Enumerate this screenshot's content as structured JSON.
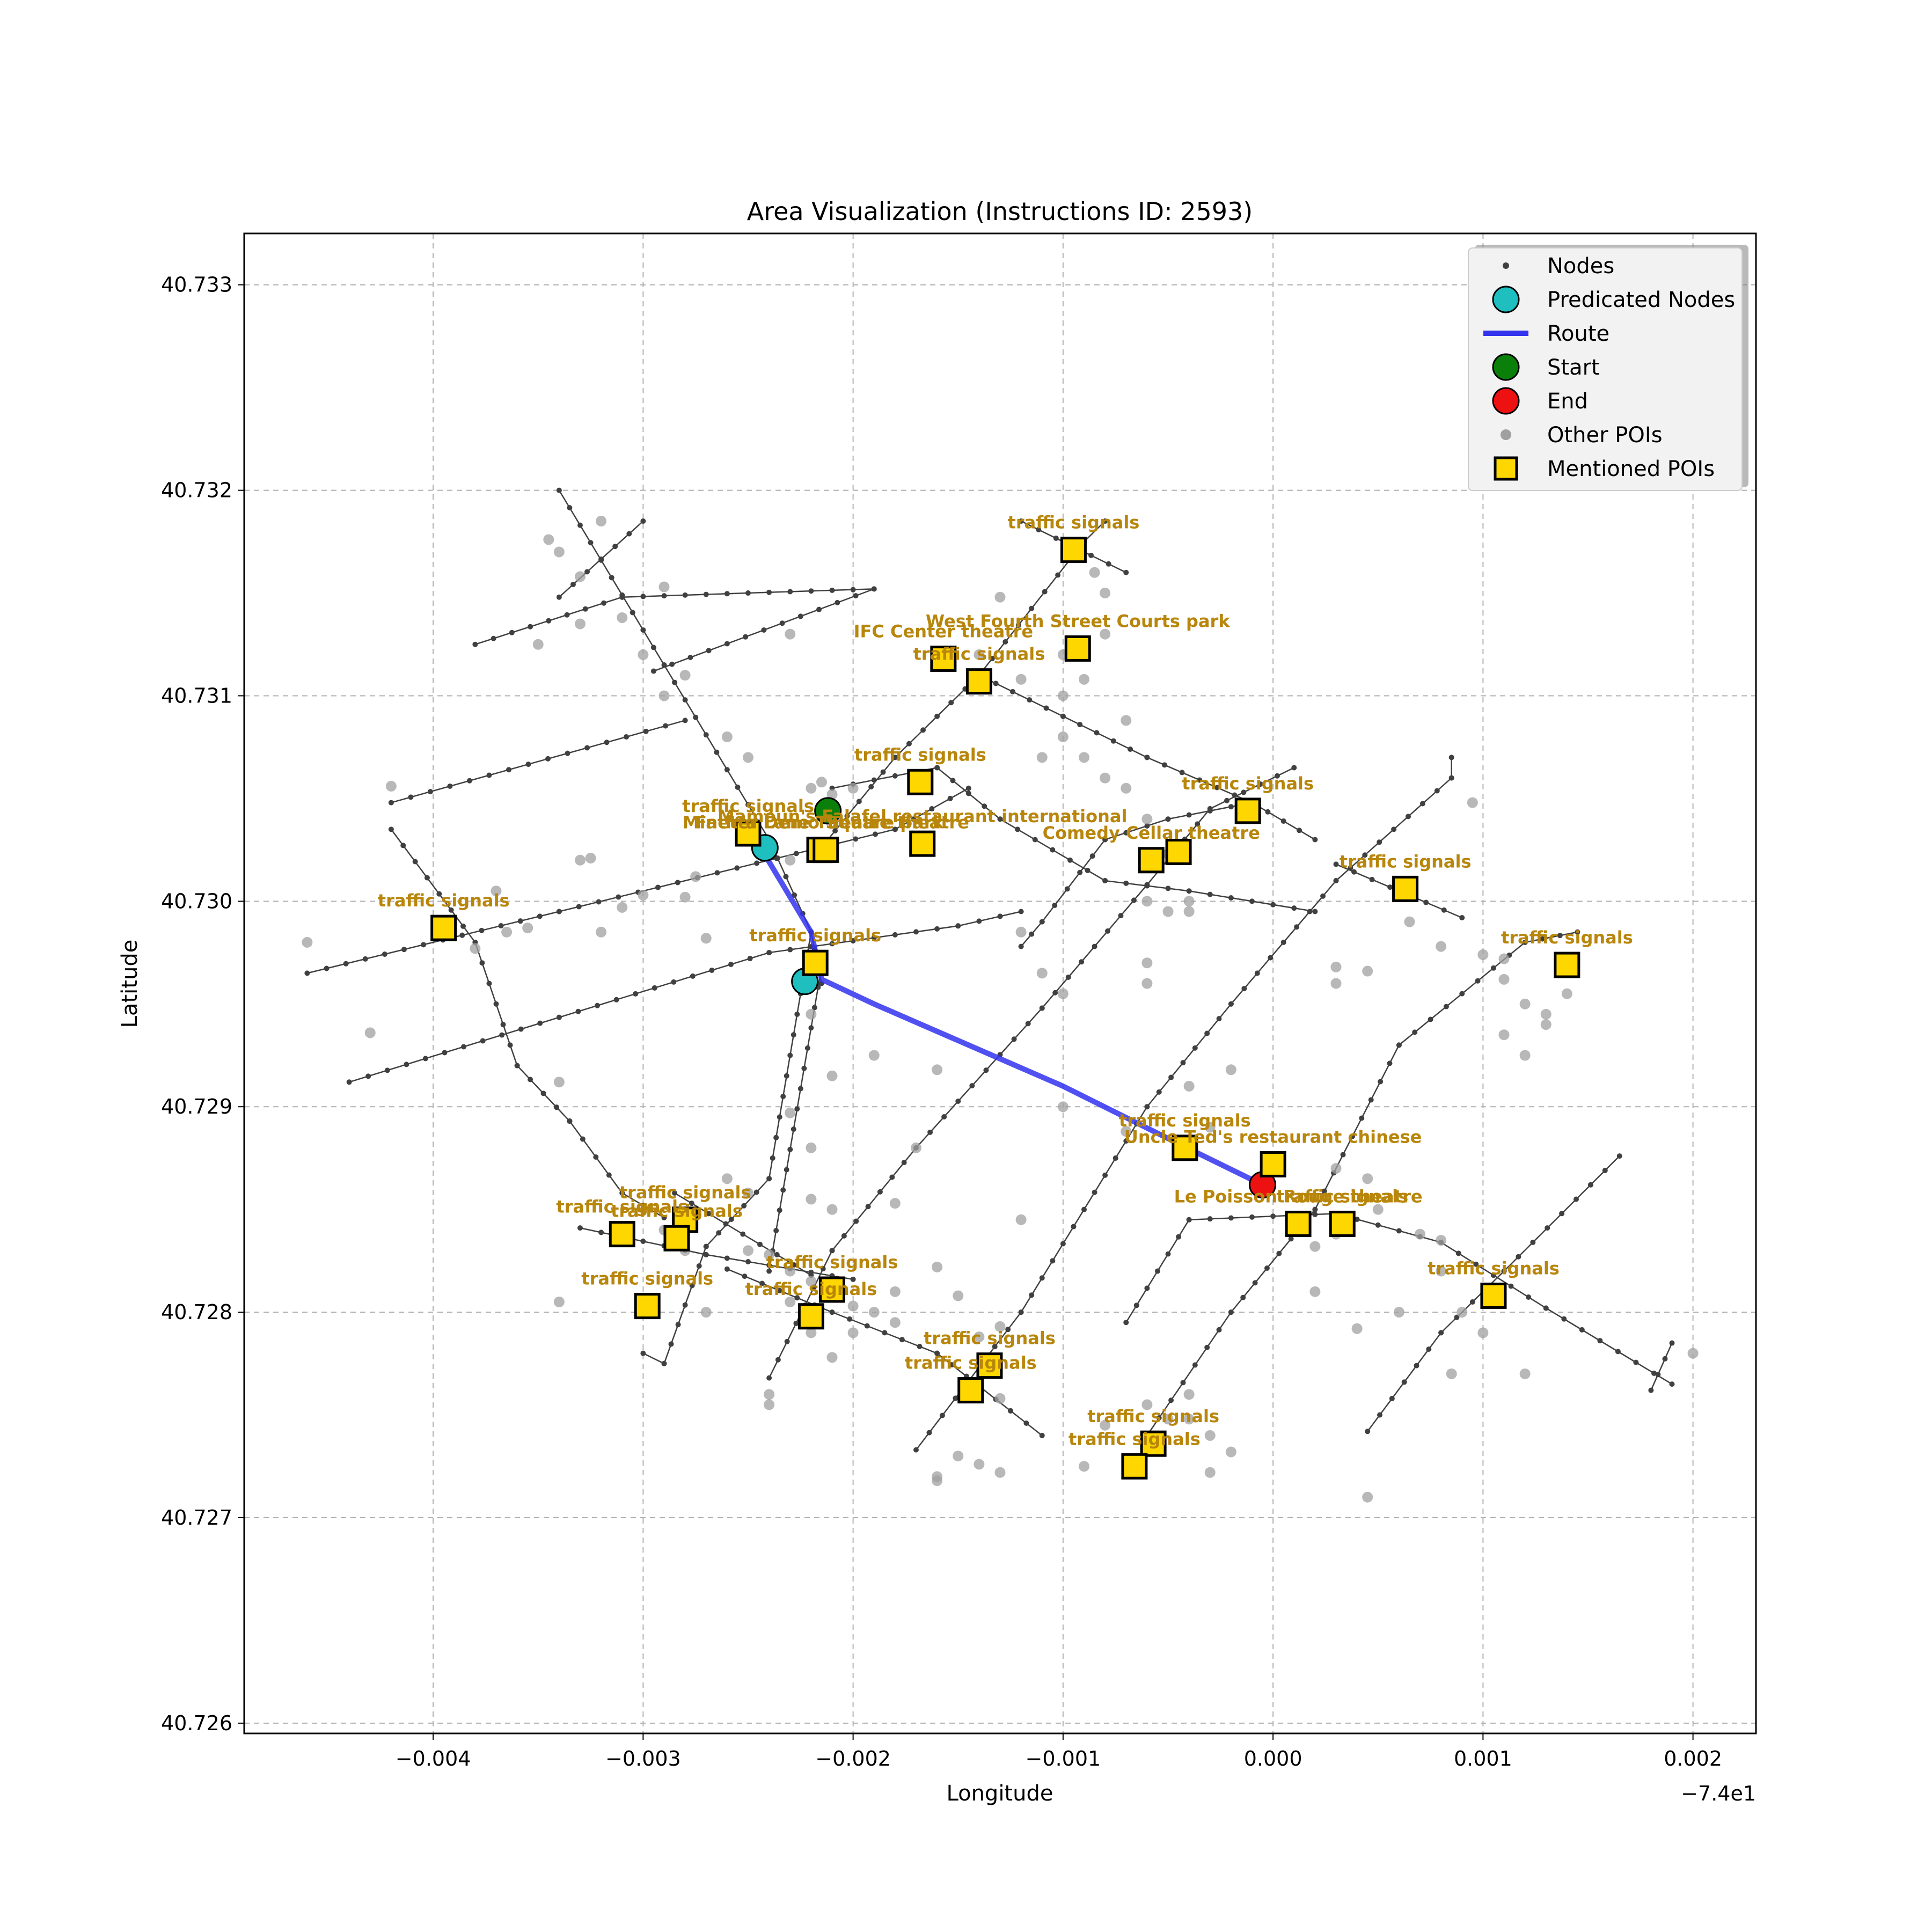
{
  "chart_data": {
    "type": "scatter",
    "title": "Area Visualization (Instructions ID: 2593)",
    "xlabel": "Longitude",
    "ylabel": "Latitude",
    "x_offset_label": "−7.4e1",
    "xlim": [
      -0.0049,
      0.0023
    ],
    "ylim": [
      40.72595,
      40.73325
    ],
    "xticks": [
      -0.004,
      -0.003,
      -0.002,
      -0.001,
      0.0,
      0.001,
      0.002
    ],
    "xtick_labels": [
      "−0.004",
      "−0.003",
      "−0.002",
      "−0.001",
      "0.000",
      "0.001",
      "0.002"
    ],
    "yticks": [
      40.726,
      40.727,
      40.728,
      40.729,
      40.73,
      40.731,
      40.732,
      40.733
    ],
    "ytick_labels": [
      "40.726",
      "40.727",
      "40.728",
      "40.729",
      "40.730",
      "40.731",
      "40.732",
      "40.733"
    ],
    "grid": true,
    "legend_position": "top-right",
    "legend": [
      {
        "label": "Nodes",
        "marker": "dot",
        "color": "#404040"
      },
      {
        "label": "Predicated Nodes",
        "marker": "circle",
        "color": "#1fbfbf"
      },
      {
        "label": "Route",
        "marker": "line",
        "color": "#3333ee"
      },
      {
        "label": "Start",
        "marker": "circle",
        "color": "#0a800a"
      },
      {
        "label": "End",
        "marker": "circle",
        "color": "#ee1111"
      },
      {
        "label": "Other POIs",
        "marker": "dot",
        "color": "#a0a0a0"
      },
      {
        "label": "Mentioned POIs",
        "marker": "square",
        "color": "#ffd700"
      }
    ],
    "streets": [
      [
        [
          -0.0046,
          40.72965
        ],
        [
          -0.0034,
          40.72995
        ],
        [
          -0.0018,
          40.73035
        ],
        [
          -0.00145,
          40.73055
        ]
      ],
      [
        [
          -0.0044,
          40.72912
        ],
        [
          -0.0024,
          40.72975
        ],
        [
          -0.0015,
          40.72988
        ],
        [
          -0.0012,
          40.72995
        ]
      ],
      [
        [
          -0.0042,
          40.73048
        ],
        [
          -0.0028,
          40.73088
        ]
      ],
      [
        [
          -0.0038,
          40.73125
        ],
        [
          -0.0031,
          40.73148
        ],
        [
          -0.0019,
          40.73152
        ]
      ],
      [
        [
          -0.0034,
          40.73148
        ],
        [
          -0.003,
          40.73185
        ]
      ],
      [
        [
          -0.00295,
          40.73112
        ],
        [
          -0.0019,
          40.73152
        ]
      ],
      [
        [
          -0.0034,
          40.732
        ],
        [
          -0.0024,
          40.7303
        ],
        [
          -0.0022,
          40.72985
        ],
        [
          -0.00215,
          40.7296
        ]
      ],
      [
        [
          -0.0042,
          40.73035
        ],
        [
          -0.0038,
          40.7298
        ],
        [
          -0.0036,
          40.7292
        ],
        [
          -0.00335,
          40.72893
        ],
        [
          -0.0031,
          40.72858
        ],
        [
          -0.0029,
          40.72846
        ]
      ],
      [
        [
          -0.0033,
          40.72841
        ],
        [
          -0.0027,
          40.72828
        ],
        [
          -0.002,
          40.72816
        ]
      ],
      [
        [
          -0.0026,
          40.72821
        ],
        [
          -0.0021,
          40.728
        ],
        [
          -0.0016,
          40.7278
        ],
        [
          -0.00125,
          40.72752
        ],
        [
          -0.0011,
          40.7274
        ]
      ],
      [
        [
          -0.00285,
          40.72858
        ],
        [
          -0.0022,
          40.72818
        ]
      ],
      [
        [
          -0.0022,
          40.72985
        ],
        [
          -0.0024,
          40.72865
        ],
        [
          -0.0027,
          40.72832
        ],
        [
          -0.0029,
          40.72775
        ],
        [
          -0.003,
          40.7278
        ]
      ],
      [
        [
          -0.00215,
          40.72968
        ],
        [
          -0.0024,
          40.7282
        ]
      ],
      [
        [
          -0.0024,
          40.72768
        ],
        [
          -0.0021,
          40.7283
        ],
        [
          -0.0017,
          40.7288
        ],
        [
          -0.0011,
          40.72948
        ],
        [
          -0.0006,
          40.73008
        ],
        [
          -0.0003,
          40.73045
        ],
        [
          0.0001,
          40.73065
        ]
      ],
      [
        [
          -0.0017,
          40.72733
        ],
        [
          -0.0012,
          40.728
        ],
        [
          -0.0006,
          40.729
        ],
        [
          -0.0002,
          40.7295
        ],
        [
          0.0003,
          40.7301
        ],
        [
          0.00085,
          40.7306
        ],
        [
          0.00085,
          40.7307
        ]
      ],
      [
        [
          -0.0006,
          40.7274
        ],
        [
          -0.0002,
          40.728
        ],
        [
          0.0002,
          40.7285
        ],
        [
          0.0006,
          40.7293
        ],
        [
          0.0012,
          40.7298
        ],
        [
          0.00145,
          40.72985
        ]
      ],
      [
        [
          0.00045,
          40.72742
        ],
        [
          0.0008,
          40.7279
        ],
        [
          0.0011,
          40.7282
        ],
        [
          0.00165,
          40.72876
        ]
      ],
      [
        [
          -0.0007,
          40.72795
        ],
        [
          -0.0004,
          40.72845
        ],
        [
          0.0003,
          40.72848
        ],
        [
          0.0008,
          40.72834
        ],
        [
          0.0013,
          40.72802
        ],
        [
          0.0019,
          40.72765
        ]
      ],
      [
        [
          0.0018,
          40.72762
        ],
        [
          0.0019,
          40.72785
        ]
      ],
      [
        [
          -0.0021,
          40.73055
        ],
        [
          -0.0016,
          40.73065
        ],
        [
          -0.0013,
          40.7304
        ],
        [
          -0.0008,
          40.7301
        ],
        [
          -0.0004,
          40.73005
        ],
        [
          0.0002,
          40.72995
        ]
      ],
      [
        [
          -0.0012,
          40.72978
        ],
        [
          -0.0011,
          40.7299
        ],
        [
          -0.0008,
          40.7303
        ],
        [
          -0.0005,
          40.7304
        ],
        [
          -0.0001,
          40.73048
        ]
      ],
      [
        [
          -0.0022,
          40.7302
        ],
        [
          -0.0018,
          40.7307
        ],
        [
          -0.0014,
          40.7311
        ],
        [
          -0.0009,
          40.73175
        ],
        [
          -0.0008,
          40.73185
        ]
      ],
      [
        [
          -0.0014,
          40.7311
        ],
        [
          -0.001,
          40.7309
        ],
        [
          -0.0006,
          40.7307
        ],
        [
          -0.0001,
          40.73048
        ],
        [
          0.0002,
          40.7303
        ]
      ],
      [
        [
          0.0003,
          40.73018
        ],
        [
          0.0009,
          40.72992
        ]
      ],
      [
        [
          -0.0012,
          40.73185
        ],
        [
          -0.0007,
          40.7316
        ]
      ]
    ],
    "route": [
      [
        -0.00244,
        40.73026
      ],
      [
        -0.0022,
        40.72985
      ],
      [
        -0.00215,
        40.72962
      ],
      [
        -0.0019,
        40.7295
      ],
      [
        -0.001,
        40.7291
      ],
      [
        -0.00045,
        40.72882
      ],
      [
        -5e-05,
        40.72862
      ]
    ],
    "start": [
      -0.00212,
      40.73044
    ],
    "end": [
      -5e-05,
      40.72862
    ],
    "predicated_nodes": [
      [
        -0.00242,
        40.73026
      ],
      [
        -0.00223,
        40.72961
      ]
    ],
    "other_pois": [
      [
        -0.0046,
        40.7298
      ],
      [
        -0.0042,
        40.73056
      ],
      [
        -0.0038,
        40.72977
      ],
      [
        -0.00365,
        40.72985
      ],
      [
        -0.00355,
        40.72987
      ],
      [
        -0.0033,
        40.7302
      ],
      [
        -0.00325,
        40.73021
      ],
      [
        -0.0032,
        40.72985
      ],
      [
        -0.0031,
        40.72997
      ],
      [
        -0.003,
        40.73003
      ],
      [
        -0.0028,
        40.73002
      ],
      [
        -0.00275,
        40.73012
      ],
      [
        -0.0027,
        40.72982
      ],
      [
        -0.0043,
        40.72936
      ],
      [
        -0.0034,
        40.72912
      ],
      [
        -0.0037,
        40.73005
      ],
      [
        -0.00345,
        40.73176
      ],
      [
        -0.0034,
        40.7317
      ],
      [
        -0.0033,
        40.73158
      ],
      [
        -0.0032,
        40.73185
      ],
      [
        -0.0031,
        40.73138
      ],
      [
        -0.003,
        40.7312
      ],
      [
        -0.0033,
        40.73135
      ],
      [
        -0.0035,
        40.73125
      ],
      [
        -0.0029,
        40.73153
      ],
      [
        -0.0029,
        40.731
      ],
      [
        -0.0028,
        40.7311
      ],
      [
        -0.0026,
        40.7308
      ],
      [
        -0.0025,
        40.7307
      ],
      [
        -0.0023,
        40.7313
      ],
      [
        -0.0022,
        40.73055
      ],
      [
        -0.00215,
        40.73058
      ],
      [
        -0.0021,
        40.73052
      ],
      [
        -0.002,
        40.73055
      ],
      [
        -0.0023,
        40.7302
      ],
      [
        -0.0022,
        40.72945
      ],
      [
        -0.0019,
        40.72925
      ],
      [
        -0.0016,
        40.72918
      ],
      [
        -0.0021,
        40.72915
      ],
      [
        -0.0023,
        40.72897
      ],
      [
        -0.0022,
        40.7288
      ],
      [
        -0.0022,
        40.72855
      ],
      [
        -0.0021,
        40.7285
      ],
      [
        -0.0026,
        40.72865
      ],
      [
        -0.0025,
        40.72858
      ],
      [
        -0.0018,
        40.72853
      ],
      [
        -0.0017,
        40.7288
      ],
      [
        -0.0016,
        40.72822
      ],
      [
        -0.0015,
        40.72808
      ],
      [
        -0.0014,
        40.72788
      ],
      [
        -0.0013,
        40.72758
      ],
      [
        -0.0014,
        40.72726
      ],
      [
        -0.0015,
        40.7273
      ],
      [
        -0.0016,
        40.7272
      ],
      [
        -0.0013,
        40.72793
      ],
      [
        -0.0012,
        40.72845
      ],
      [
        -0.0014,
        40.7312
      ],
      [
        -0.0012,
        40.73108
      ],
      [
        -0.0013,
        40.73148
      ],
      [
        -0.001,
        40.7312
      ],
      [
        -0.001,
        40.731
      ],
      [
        -0.0009,
        40.73108
      ],
      [
        -0.0008,
        40.7315
      ],
      [
        -0.0008,
        40.7313
      ],
      [
        -0.00085,
        40.7316
      ],
      [
        -0.001,
        40.7308
      ],
      [
        -0.0011,
        40.7307
      ],
      [
        -0.0009,
        40.7307
      ],
      [
        -0.0008,
        40.7306
      ],
      [
        -0.0007,
        40.73055
      ],
      [
        -0.0006,
        40.7304
      ],
      [
        -0.0007,
        40.73088
      ],
      [
        -0.0005,
        40.73023
      ],
      [
        -0.0004,
        40.73
      ],
      [
        -0.0004,
        40.72995
      ],
      [
        -0.0006,
        40.73
      ],
      [
        -0.0005,
        40.72995
      ],
      [
        -0.0006,
        40.7297
      ],
      [
        -0.0006,
        40.7296
      ],
      [
        -0.0011,
        40.72965
      ],
      [
        -0.001,
        40.72955
      ],
      [
        -0.0012,
        40.72985
      ],
      [
        -0.001,
        40.729
      ],
      [
        -0.0004,
        40.7291
      ],
      [
        -0.0002,
        40.72918
      ],
      [
        -0.0003,
        40.7289
      ],
      [
        -0.0007,
        40.72888
      ],
      [
        0.0003,
        40.7287
      ],
      [
        0.00045,
        40.72865
      ],
      [
        0.0005,
        40.7285
      ],
      [
        0.0003,
        40.72838
      ],
      [
        0.0002,
        40.72832
      ],
      [
        0.0007,
        40.72838
      ],
      [
        0.0008,
        40.72835
      ],
      [
        0.0008,
        40.7282
      ],
      [
        0.0003,
        40.7296
      ],
      [
        0.0003,
        40.72968
      ],
      [
        0.00045,
        40.72966
      ],
      [
        0.0008,
        40.72978
      ],
      [
        0.00065,
        40.7299
      ],
      [
        0.001,
        40.72974
      ],
      [
        0.0011,
        40.72972
      ],
      [
        0.0011,
        40.72962
      ],
      [
        0.0012,
        40.7295
      ],
      [
        0.0013,
        40.72945
      ],
      [
        0.0013,
        40.7294
      ],
      [
        0.0014,
        40.72955
      ],
      [
        0.0011,
        40.72935
      ],
      [
        0.0012,
        40.72925
      ],
      [
        0.00095,
        40.73048
      ],
      [
        0.0002,
        40.7281
      ],
      [
        0.0004,
        40.72792
      ],
      [
        0.0006,
        40.728
      ],
      [
        0.0009,
        40.728
      ],
      [
        0.001,
        40.7279
      ],
      [
        0.0012,
        40.7277
      ],
      [
        0.00085,
        40.7277
      ],
      [
        0.002,
        40.7278
      ],
      [
        0.00045,
        40.7271
      ],
      [
        -0.0004,
        40.7276
      ],
      [
        -0.0004,
        40.72748
      ],
      [
        -0.0003,
        40.7274
      ],
      [
        -0.0002,
        40.72732
      ],
      [
        -0.0003,
        40.72722
      ],
      [
        -0.0005,
        40.72748
      ],
      [
        -0.0006,
        40.72755
      ],
      [
        -0.0008,
        40.72745
      ],
      [
        -0.0009,
        40.72725
      ],
      [
        -0.0013,
        40.72722
      ],
      [
        -0.0016,
        40.72718
      ],
      [
        -0.0024,
        40.7276
      ],
      [
        -0.0024,
        40.72755
      ],
      [
        -0.0022,
        40.7279
      ],
      [
        -0.0021,
        40.72778
      ],
      [
        -0.002,
        40.7279
      ],
      [
        -0.0019,
        40.728
      ],
      [
        -0.0018,
        40.7281
      ],
      [
        -0.0018,
        40.72795
      ],
      [
        -0.0025,
        40.7283
      ],
      [
        -0.0027,
        40.728
      ],
      [
        -0.003,
        40.72805
      ],
      [
        -0.0034,
        40.72805
      ],
      [
        -0.0029,
        40.7284
      ],
      [
        -0.0028,
        40.7283
      ],
      [
        -0.0024,
        40.72828
      ],
      [
        -0.0023,
        40.7282
      ],
      [
        -0.0022,
        40.72815
      ],
      [
        -0.0021,
        40.7281
      ],
      [
        -0.002,
        40.72803
      ],
      [
        -0.0023,
        40.72805
      ]
    ],
    "mentioned_pois": [
      {
        "x": -0.00095,
        "y": 40.73171,
        "label": "traffic signals"
      },
      {
        "x": -0.00093,
        "y": 40.73123,
        "label": "West Fourth Street Courts   park"
      },
      {
        "x": -0.00157,
        "y": 40.73118,
        "label": "IFC Center theatre"
      },
      {
        "x": -0.0014,
        "y": 40.73107,
        "label": "traffic signals"
      },
      {
        "x": -0.00168,
        "y": 40.73058,
        "label": "traffic signals"
      },
      {
        "x": -0.0025,
        "y": 40.73033,
        "label": "traffic signals"
      },
      {
        "x": -0.00216,
        "y": 40.73025,
        "label": "Father Demo Square   park"
      },
      {
        "x": -0.00213,
        "y": 40.73025,
        "label": "Minetta Lane Theatre theatre"
      },
      {
        "x": -0.00167,
        "y": 40.73028,
        "label": "Mamoun's Falafel restaurant international"
      },
      {
        "x": -0.00058,
        "y": 40.7302,
        "label": "Comedy Cellar theatre"
      },
      {
        "x": -0.00045,
        "y": 40.73024,
        "label": ""
      },
      {
        "x": -0.00012,
        "y": 40.73044,
        "label": "traffic signals"
      },
      {
        "x": 0.00063,
        "y": 40.73006,
        "label": "traffic signals"
      },
      {
        "x": 0.0014,
        "y": 40.72969,
        "label": "traffic signals"
      },
      {
        "x": -0.00395,
        "y": 40.72987,
        "label": "traffic signals"
      },
      {
        "x": -0.00218,
        "y": 40.7297,
        "label": "traffic signals"
      },
      {
        "x": -0.00042,
        "y": 40.7288,
        "label": "traffic signals"
      },
      {
        "x": 0.0,
        "y": 40.72872,
        "label": "Uncle Ted's restaurant chinese"
      },
      {
        "x": 0.00012,
        "y": 40.72843,
        "label": "Le Poisson Rouge theatre"
      },
      {
        "x": 0.00033,
        "y": 40.72843,
        "label": "traffic signals"
      },
      {
        "x": 0.00105,
        "y": 40.72808,
        "label": "traffic signals"
      },
      {
        "x": -0.0031,
        "y": 40.72838,
        "label": "traffic signals"
      },
      {
        "x": -0.0028,
        "y": 40.72845,
        "label": "traffic signals"
      },
      {
        "x": -0.00284,
        "y": 40.72836,
        "label": "traffic signals"
      },
      {
        "x": -0.00298,
        "y": 40.72803,
        "label": "traffic signals"
      },
      {
        "x": -0.0021,
        "y": 40.72811,
        "label": "traffic signals"
      },
      {
        "x": -0.0022,
        "y": 40.72798,
        "label": "traffic signals"
      },
      {
        "x": -0.00135,
        "y": 40.72774,
        "label": "traffic signals"
      },
      {
        "x": -0.00144,
        "y": 40.72762,
        "label": "traffic signals"
      },
      {
        "x": -0.00057,
        "y": 40.72736,
        "label": "traffic signals"
      },
      {
        "x": -0.00066,
        "y": 40.72725,
        "label": "traffic signals"
      }
    ]
  }
}
